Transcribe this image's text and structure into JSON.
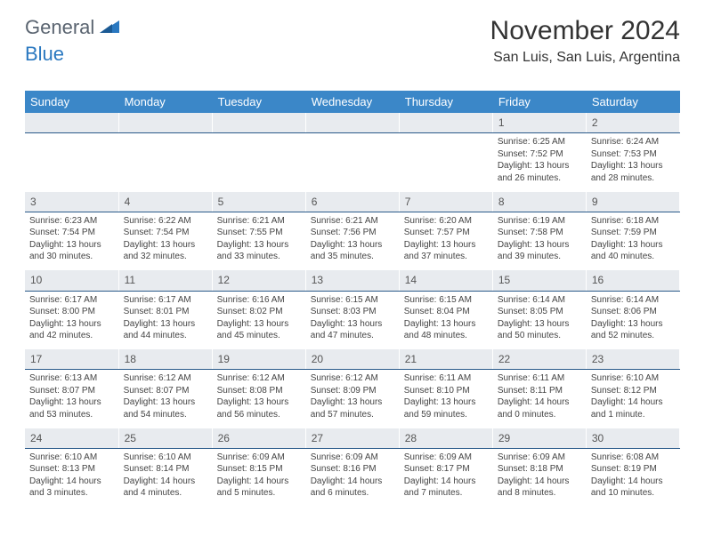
{
  "logo": {
    "part1": "General",
    "part2": "Blue"
  },
  "title": "November 2024",
  "location": "San Luis, San Luis, Argentina",
  "colors": {
    "header_bg": "#3b87c8",
    "header_text": "#ffffff",
    "daynum_bg": "#e8ebef",
    "daynum_border": "#2a5a8a",
    "logo_gray": "#5a6470",
    "logo_blue": "#2a78c0",
    "text": "#444444"
  },
  "weekdays": [
    "Sunday",
    "Monday",
    "Tuesday",
    "Wednesday",
    "Thursday",
    "Friday",
    "Saturday"
  ],
  "weeks": [
    {
      "nums": [
        "",
        "",
        "",
        "",
        "",
        "1",
        "2"
      ],
      "cells": [
        null,
        null,
        null,
        null,
        null,
        {
          "sunrise": "Sunrise: 6:25 AM",
          "sunset": "Sunset: 7:52 PM",
          "day1": "Daylight: 13 hours",
          "day2": "and 26 minutes."
        },
        {
          "sunrise": "Sunrise: 6:24 AM",
          "sunset": "Sunset: 7:53 PM",
          "day1": "Daylight: 13 hours",
          "day2": "and 28 minutes."
        }
      ]
    },
    {
      "nums": [
        "3",
        "4",
        "5",
        "6",
        "7",
        "8",
        "9"
      ],
      "cells": [
        {
          "sunrise": "Sunrise: 6:23 AM",
          "sunset": "Sunset: 7:54 PM",
          "day1": "Daylight: 13 hours",
          "day2": "and 30 minutes."
        },
        {
          "sunrise": "Sunrise: 6:22 AM",
          "sunset": "Sunset: 7:54 PM",
          "day1": "Daylight: 13 hours",
          "day2": "and 32 minutes."
        },
        {
          "sunrise": "Sunrise: 6:21 AM",
          "sunset": "Sunset: 7:55 PM",
          "day1": "Daylight: 13 hours",
          "day2": "and 33 minutes."
        },
        {
          "sunrise": "Sunrise: 6:21 AM",
          "sunset": "Sunset: 7:56 PM",
          "day1": "Daylight: 13 hours",
          "day2": "and 35 minutes."
        },
        {
          "sunrise": "Sunrise: 6:20 AM",
          "sunset": "Sunset: 7:57 PM",
          "day1": "Daylight: 13 hours",
          "day2": "and 37 minutes."
        },
        {
          "sunrise": "Sunrise: 6:19 AM",
          "sunset": "Sunset: 7:58 PM",
          "day1": "Daylight: 13 hours",
          "day2": "and 39 minutes."
        },
        {
          "sunrise": "Sunrise: 6:18 AM",
          "sunset": "Sunset: 7:59 PM",
          "day1": "Daylight: 13 hours",
          "day2": "and 40 minutes."
        }
      ]
    },
    {
      "nums": [
        "10",
        "11",
        "12",
        "13",
        "14",
        "15",
        "16"
      ],
      "cells": [
        {
          "sunrise": "Sunrise: 6:17 AM",
          "sunset": "Sunset: 8:00 PM",
          "day1": "Daylight: 13 hours",
          "day2": "and 42 minutes."
        },
        {
          "sunrise": "Sunrise: 6:17 AM",
          "sunset": "Sunset: 8:01 PM",
          "day1": "Daylight: 13 hours",
          "day2": "and 44 minutes."
        },
        {
          "sunrise": "Sunrise: 6:16 AM",
          "sunset": "Sunset: 8:02 PM",
          "day1": "Daylight: 13 hours",
          "day2": "and 45 minutes."
        },
        {
          "sunrise": "Sunrise: 6:15 AM",
          "sunset": "Sunset: 8:03 PM",
          "day1": "Daylight: 13 hours",
          "day2": "and 47 minutes."
        },
        {
          "sunrise": "Sunrise: 6:15 AM",
          "sunset": "Sunset: 8:04 PM",
          "day1": "Daylight: 13 hours",
          "day2": "and 48 minutes."
        },
        {
          "sunrise": "Sunrise: 6:14 AM",
          "sunset": "Sunset: 8:05 PM",
          "day1": "Daylight: 13 hours",
          "day2": "and 50 minutes."
        },
        {
          "sunrise": "Sunrise: 6:14 AM",
          "sunset": "Sunset: 8:06 PM",
          "day1": "Daylight: 13 hours",
          "day2": "and 52 minutes."
        }
      ]
    },
    {
      "nums": [
        "17",
        "18",
        "19",
        "20",
        "21",
        "22",
        "23"
      ],
      "cells": [
        {
          "sunrise": "Sunrise: 6:13 AM",
          "sunset": "Sunset: 8:07 PM",
          "day1": "Daylight: 13 hours",
          "day2": "and 53 minutes."
        },
        {
          "sunrise": "Sunrise: 6:12 AM",
          "sunset": "Sunset: 8:07 PM",
          "day1": "Daylight: 13 hours",
          "day2": "and 54 minutes."
        },
        {
          "sunrise": "Sunrise: 6:12 AM",
          "sunset": "Sunset: 8:08 PM",
          "day1": "Daylight: 13 hours",
          "day2": "and 56 minutes."
        },
        {
          "sunrise": "Sunrise: 6:12 AM",
          "sunset": "Sunset: 8:09 PM",
          "day1": "Daylight: 13 hours",
          "day2": "and 57 minutes."
        },
        {
          "sunrise": "Sunrise: 6:11 AM",
          "sunset": "Sunset: 8:10 PM",
          "day1": "Daylight: 13 hours",
          "day2": "and 59 minutes."
        },
        {
          "sunrise": "Sunrise: 6:11 AM",
          "sunset": "Sunset: 8:11 PM",
          "day1": "Daylight: 14 hours",
          "day2": "and 0 minutes."
        },
        {
          "sunrise": "Sunrise: 6:10 AM",
          "sunset": "Sunset: 8:12 PM",
          "day1": "Daylight: 14 hours",
          "day2": "and 1 minute."
        }
      ]
    },
    {
      "nums": [
        "24",
        "25",
        "26",
        "27",
        "28",
        "29",
        "30"
      ],
      "cells": [
        {
          "sunrise": "Sunrise: 6:10 AM",
          "sunset": "Sunset: 8:13 PM",
          "day1": "Daylight: 14 hours",
          "day2": "and 3 minutes."
        },
        {
          "sunrise": "Sunrise: 6:10 AM",
          "sunset": "Sunset: 8:14 PM",
          "day1": "Daylight: 14 hours",
          "day2": "and 4 minutes."
        },
        {
          "sunrise": "Sunrise: 6:09 AM",
          "sunset": "Sunset: 8:15 PM",
          "day1": "Daylight: 14 hours",
          "day2": "and 5 minutes."
        },
        {
          "sunrise": "Sunrise: 6:09 AM",
          "sunset": "Sunset: 8:16 PM",
          "day1": "Daylight: 14 hours",
          "day2": "and 6 minutes."
        },
        {
          "sunrise": "Sunrise: 6:09 AM",
          "sunset": "Sunset: 8:17 PM",
          "day1": "Daylight: 14 hours",
          "day2": "and 7 minutes."
        },
        {
          "sunrise": "Sunrise: 6:09 AM",
          "sunset": "Sunset: 8:18 PM",
          "day1": "Daylight: 14 hours",
          "day2": "and 8 minutes."
        },
        {
          "sunrise": "Sunrise: 6:08 AM",
          "sunset": "Sunset: 8:19 PM",
          "day1": "Daylight: 14 hours",
          "day2": "and 10 minutes."
        }
      ]
    }
  ]
}
